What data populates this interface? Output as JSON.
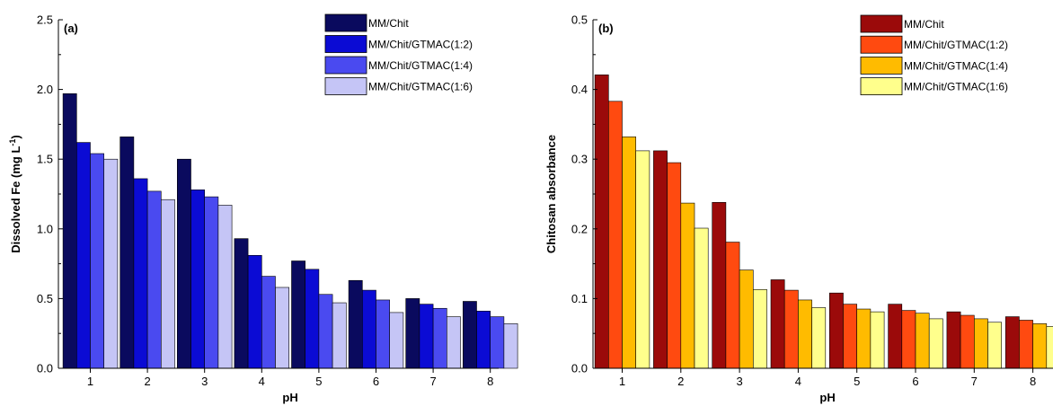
{
  "chart_data": [
    {
      "type": "bar",
      "panel_label": "(a)",
      "categories": [
        "1",
        "2",
        "3",
        "4",
        "5",
        "6",
        "7",
        "8"
      ],
      "xlabel": "pH",
      "ylabel_main": "Dissolved Fe (mg L",
      "ylabel_sup": "-1",
      "ylabel_end": ")",
      "ylim": [
        0,
        2.5
      ],
      "yticks": [
        0.0,
        0.5,
        1.0,
        1.5,
        2.0,
        2.5
      ],
      "ytick_labels": [
        "0.0",
        "0.5",
        "1.0",
        "1.5",
        "2.0",
        "2.5"
      ],
      "grid": false,
      "legend_position": "top-right",
      "series": [
        {
          "name": "MM/Chit",
          "color": "#0a0a5e",
          "values": [
            1.97,
            1.66,
            1.5,
            0.93,
            0.77,
            0.63,
            0.5,
            0.48
          ]
        },
        {
          "name": "MM/Chit/GTMAC(1:2)",
          "color": "#0b0bd4",
          "values": [
            1.62,
            1.36,
            1.28,
            0.81,
            0.71,
            0.56,
            0.46,
            0.41
          ]
        },
        {
          "name": "MM/Chit/GTMAC(1:4)",
          "color": "#4a4af0",
          "values": [
            1.54,
            1.27,
            1.23,
            0.66,
            0.53,
            0.49,
            0.43,
            0.37
          ]
        },
        {
          "name": "MM/Chit/GTMAC(1:6)",
          "color": "#c5c5f6",
          "values": [
            1.5,
            1.21,
            1.17,
            0.58,
            0.47,
            0.4,
            0.37,
            0.32
          ]
        }
      ]
    },
    {
      "type": "bar",
      "panel_label": "(b)",
      "categories": [
        "1",
        "2",
        "3",
        "4",
        "5",
        "6",
        "7",
        "8"
      ],
      "xlabel": "pH",
      "ylabel_main": "Chitosan absorbance",
      "ylabel_sup": "",
      "ylabel_end": "",
      "ylim": [
        0,
        0.5
      ],
      "yticks": [
        0.0,
        0.1,
        0.2,
        0.3,
        0.4,
        0.5
      ],
      "ytick_labels": [
        "0.0",
        "0.1",
        "0.2",
        "0.3",
        "0.4",
        "0.5"
      ],
      "grid": false,
      "legend_position": "top-right",
      "series": [
        {
          "name": "MM/Chit",
          "color": "#9b0a0a",
          "values": [
            0.421,
            0.312,
            0.238,
            0.127,
            0.108,
            0.092,
            0.081,
            0.074
          ]
        },
        {
          "name": "MM/Chit/GTMAC(1:2)",
          "color": "#ff4a10",
          "values": [
            0.383,
            0.295,
            0.181,
            0.112,
            0.092,
            0.083,
            0.076,
            0.069
          ]
        },
        {
          "name": "MM/Chit/GTMAC(1:4)",
          "color": "#ffbb00",
          "values": [
            0.332,
            0.237,
            0.141,
            0.098,
            0.085,
            0.079,
            0.071,
            0.064
          ]
        },
        {
          "name": "MM/Chit/GTMAC(1:6)",
          "color": "#ffff8c",
          "values": [
            0.312,
            0.201,
            0.113,
            0.087,
            0.081,
            0.071,
            0.066,
            0.06
          ]
        }
      ]
    }
  ]
}
